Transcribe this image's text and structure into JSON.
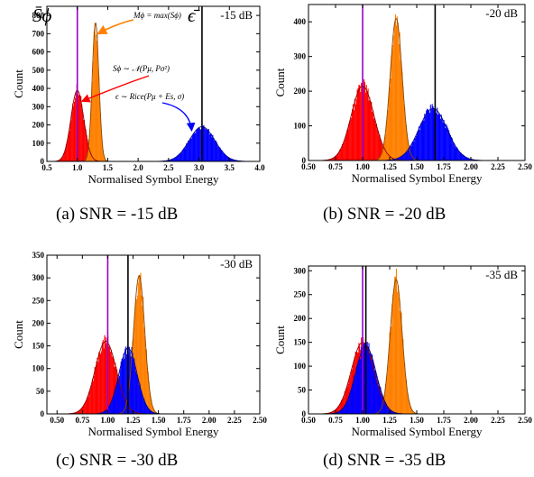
{
  "chart_data": [
    {
      "id": "a",
      "type": "histogram",
      "snr_label": "-15 dB",
      "caption": "(a)  SNR = -15 dB",
      "xlabel": "Normalised Symbol Energy",
      "ylabel": "Count",
      "xlim": [
        0.5,
        4.0
      ],
      "ylim": [
        0,
        850
      ],
      "xticks": [
        "0.5",
        "1.0",
        "1.5",
        "2.0",
        "2.5",
        "3.0",
        "3.5",
        "4.0"
      ],
      "xtick_values": [
        0.5,
        1.0,
        1.5,
        2.0,
        2.5,
        3.0,
        3.5,
        4.0
      ],
      "yticks": [
        "0",
        "100",
        "200",
        "300",
        "400",
        "500",
        "600",
        "700",
        "800"
      ],
      "ytick_values": [
        0,
        100,
        200,
        300,
        400,
        500,
        600,
        700,
        800
      ],
      "series": [
        {
          "color": "#ff0000",
          "mu": 1.0,
          "sigma": 0.105,
          "peak": 390
        },
        {
          "color": "#ff8000",
          "mu": 1.3,
          "sigma": 0.055,
          "peak": 760
        },
        {
          "color": "#0000ff",
          "mu": 3.05,
          "sigma": 0.21,
          "peak": 190
        }
      ],
      "vlines": [
        {
          "x": 1.0,
          "color": "#9900cc"
        },
        {
          "x": 3.05,
          "color": "#000000"
        }
      ],
      "annotations": [
        {
          "text": "S̄ϕ"
        },
        {
          "text": "ϵ̄"
        },
        {
          "text": "Mϕ = max(Sϕ)"
        },
        {
          "text": "Sϕ ∼ 𝒩(Pμ, Pσ²)"
        },
        {
          "text": "ϵ ∼ Rice(Pμ + Es, σ)"
        }
      ]
    },
    {
      "id": "b",
      "type": "histogram",
      "snr_label": "-20 dB",
      "caption": "(b)  SNR = -20 dB",
      "xlabel": "Normalised Symbol Energy",
      "ylabel": "Count",
      "xlim": [
        0.5,
        2.5
      ],
      "ylim": [
        0,
        450
      ],
      "xticks": [
        "0.50",
        "0.75",
        "1.00",
        "1.25",
        "1.50",
        "1.75",
        "2.00",
        "2.25",
        "2.50"
      ],
      "xtick_values": [
        0.5,
        0.75,
        1.0,
        1.25,
        1.5,
        1.75,
        2.0,
        2.25,
        2.5
      ],
      "yticks": [
        "0",
        "100",
        "200",
        "300",
        "400"
      ],
      "ytick_values": [
        0,
        100,
        200,
        300,
        400
      ],
      "series": [
        {
          "color": "#ff0000",
          "mu": 1.0,
          "sigma": 0.105,
          "peak": 215
        },
        {
          "color": "#ff8000",
          "mu": 1.31,
          "sigma": 0.055,
          "peak": 410
        },
        {
          "color": "#0000ff",
          "mu": 1.65,
          "sigma": 0.13,
          "peak": 150
        }
      ],
      "vlines": [
        {
          "x": 1.0,
          "color": "#9900cc"
        },
        {
          "x": 1.67,
          "color": "#000000"
        }
      ],
      "annotations": []
    },
    {
      "id": "c",
      "type": "histogram",
      "snr_label": "-30 dB",
      "caption": "(c)  SNR = -30 dB",
      "xlabel": "Normalised Symbol Energy",
      "ylabel": "Count",
      "xlim": [
        0.4,
        2.5
      ],
      "ylim": [
        0,
        350
      ],
      "xticks": [
        "0.50",
        "0.75",
        "1.00",
        "1.25",
        "1.50",
        "1.75",
        "2.00",
        "2.25",
        "2.50"
      ],
      "xtick_values": [
        0.5,
        0.75,
        1.0,
        1.25,
        1.5,
        1.75,
        2.0,
        2.25,
        2.5
      ],
      "yticks": [
        "0",
        "50",
        "100",
        "150",
        "200",
        "250",
        "300",
        "350"
      ],
      "ytick_values": [
        0,
        50,
        100,
        150,
        200,
        250,
        300,
        350
      ],
      "series": [
        {
          "color": "#ff0000",
          "mu": 0.98,
          "sigma": 0.105,
          "peak": 160
        },
        {
          "color": "#ff8000",
          "mu": 1.31,
          "sigma": 0.055,
          "peak": 305
        },
        {
          "color": "#0000ff",
          "mu": 1.2,
          "sigma": 0.09,
          "peak": 145
        }
      ],
      "vlines": [
        {
          "x": 1.0,
          "color": "#9900cc"
        },
        {
          "x": 1.2,
          "color": "#000000"
        }
      ],
      "annotations": []
    },
    {
      "id": "d",
      "type": "histogram",
      "snr_label": "-35 dB",
      "caption": "(d)  SNR = -35 dB",
      "xlabel": "Normalised Symbol Energy",
      "ylabel": "Count",
      "xlim": [
        0.5,
        2.5
      ],
      "ylim": [
        0,
        310
      ],
      "xticks": [
        "0.50",
        "0.75",
        "1.00",
        "1.25",
        "1.50",
        "1.75",
        "2.00",
        "2.25",
        "2.50"
      ],
      "xtick_values": [
        0.5,
        0.75,
        1.0,
        1.25,
        1.5,
        1.75,
        2.0,
        2.25,
        2.5
      ],
      "yticks": [
        "0",
        "50",
        "100",
        "150",
        "200",
        "250",
        "300"
      ],
      "ytick_values": [
        0,
        50,
        100,
        150,
        200,
        250,
        300
      ],
      "series": [
        {
          "color": "#ff0000",
          "mu": 1.0,
          "sigma": 0.105,
          "peak": 150
        },
        {
          "color": "#ff8000",
          "mu": 1.31,
          "sigma": 0.055,
          "peak": 282
        },
        {
          "color": "#0000ff",
          "mu": 1.03,
          "sigma": 0.095,
          "peak": 142
        }
      ],
      "vlines": [
        {
          "x": 1.0,
          "color": "#9900cc"
        },
        {
          "x": 1.03,
          "color": "#000000"
        }
      ],
      "annotations": []
    }
  ]
}
